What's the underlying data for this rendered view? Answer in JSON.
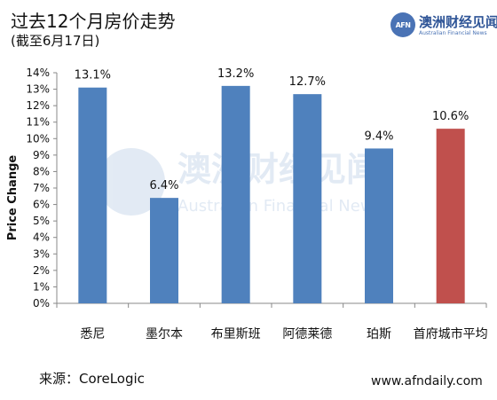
{
  "header": {
    "title": "过去12个月房价走势",
    "subtitle": "(截至6月17日)"
  },
  "logo": {
    "mark": "AFN",
    "name_cn": "澳洲财经见闻",
    "name_en": "Australian Financial News"
  },
  "watermark": {
    "name_cn": "澳洲财经见闻",
    "name_en": "Australian Financial News"
  },
  "footer": {
    "source": "来源：CoreLogic",
    "site": "www.afndaily.com"
  },
  "chart_data": {
    "type": "bar",
    "title": "过去12个月房价走势",
    "subtitle": "(截至6月17日)",
    "xlabel": "",
    "ylabel": "Price Change",
    "categories": [
      "悉尼",
      "墨尔本",
      "布里斯班",
      "阿德莱德",
      "珀斯",
      "首府城市平均"
    ],
    "values": [
      13.1,
      6.4,
      13.2,
      12.7,
      9.4,
      10.6
    ],
    "data_labels": [
      "13.1%",
      "6.4%",
      "13.2%",
      "12.7%",
      "9.4%",
      "10.6%"
    ],
    "bar_colors": [
      "#4f81bd",
      "#4f81bd",
      "#4f81bd",
      "#4f81bd",
      "#4f81bd",
      "#c0504d"
    ],
    "ylim": [
      0,
      14
    ],
    "yticks": [
      "0%",
      "1%",
      "2%",
      "3%",
      "4%",
      "5%",
      "6%",
      "7%",
      "8%",
      "9%",
      "10%",
      "11%",
      "12%",
      "13%",
      "14%"
    ],
    "grid": false,
    "legend": "none"
  }
}
